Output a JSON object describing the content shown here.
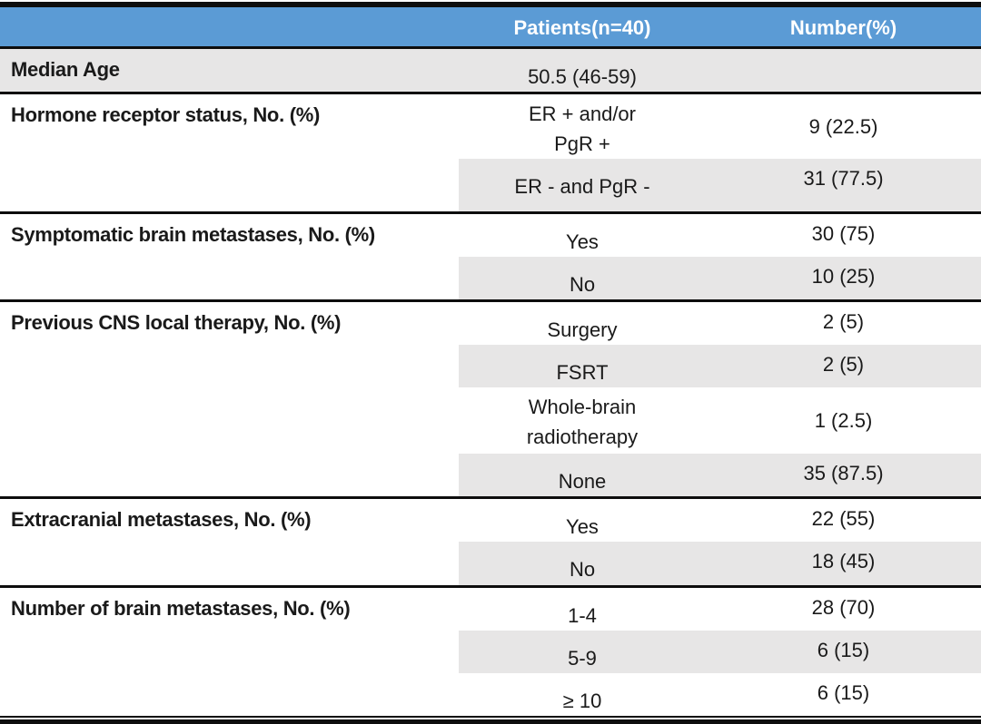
{
  "table": {
    "title": "patient-characteristics",
    "header": {
      "label": "",
      "patients": "Patients(n=40)",
      "number": "Number(%)"
    },
    "rows": [
      {
        "label": "Median Age",
        "patients": "50.5 (46-59)",
        "number": ""
      },
      {
        "label": "Hormone receptor status, No. (%)",
        "patients": "ER + and/or\nPgR +",
        "number": "9 (22.5)"
      },
      {
        "label": "",
        "patients": "ER - and PgR -",
        "number": "31 (77.5)"
      },
      {
        "label": "Symptomatic brain metastases, No. (%)",
        "patients": "Yes",
        "number": "30 (75)"
      },
      {
        "label": "",
        "patients": "No",
        "number": "10 (25)"
      },
      {
        "label": "Previous CNS local therapy, No. (%)",
        "patients": "Surgery",
        "number": "2 (5)"
      },
      {
        "label": "",
        "patients": "FSRT",
        "number": "2 (5)"
      },
      {
        "label": "",
        "patients": "Whole-brain\nradiotherapy",
        "number": "1 (2.5)"
      },
      {
        "label": "",
        "patients": "None",
        "number": "35 (87.5)"
      },
      {
        "label": "Extracranial metastases, No. (%)",
        "patients": "Yes",
        "number": "22 (55)"
      },
      {
        "label": "",
        "patients": "No",
        "number": "18 (45)"
      },
      {
        "label": "Number of brain metastases, No. (%)",
        "patients": "1-4",
        "number": "28 (70)"
      },
      {
        "label": "",
        "patients": "5-9",
        "number": "6 (15)"
      },
      {
        "label": "",
        "patients": "≥ 10",
        "number": "6 (15)"
      }
    ],
    "colors": {
      "header_bg": "#5b9bd5",
      "header_text": "#ffffff",
      "row_shade": "#e7e6e6",
      "border": "#0d0d0d",
      "text": "#1a1a1a"
    }
  }
}
